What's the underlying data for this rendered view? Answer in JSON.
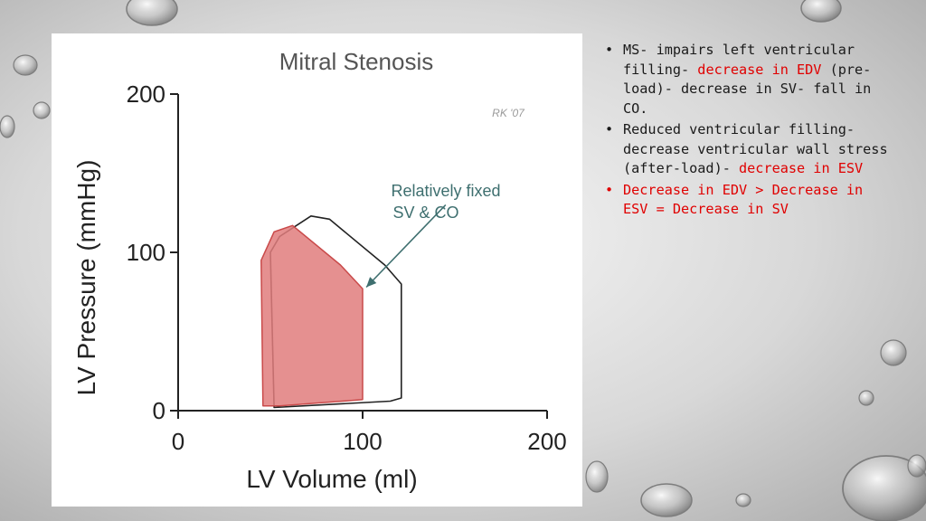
{
  "figure": {
    "title": "Mitral Stenosis",
    "watermark": "RK '07",
    "annotation": [
      "Relatively fixed",
      "SV & CO"
    ],
    "colors": {
      "shaded_loop": "#e07c7c",
      "text_annotation": "#3e6f6f",
      "axis": "#222222"
    }
  },
  "chart_data": {
    "type": "line",
    "title": "Mitral Stenosis",
    "xlabel": "LV Volume (ml)",
    "ylabel": "LV Pressure (mmHg)",
    "xlim": [
      0,
      200
    ],
    "ylim": [
      0,
      200
    ],
    "x_ticks": [
      "0",
      "100",
      "200"
    ],
    "y_ticks": [
      "0",
      "100",
      "200"
    ],
    "grid": false,
    "series": [
      {
        "style": "outline",
        "points": [
          [
            52,
            2
          ],
          [
            50,
            100
          ],
          [
            55,
            110
          ],
          [
            72,
            123
          ],
          [
            82,
            121
          ],
          [
            112,
            92
          ],
          [
            121,
            80
          ],
          [
            121,
            8
          ],
          [
            115,
            6
          ],
          [
            52,
            2
          ]
        ]
      },
      {
        "style": "filled",
        "points": [
          [
            46,
            3
          ],
          [
            45,
            95
          ],
          [
            52,
            113
          ],
          [
            62,
            117
          ],
          [
            88,
            92
          ],
          [
            100,
            77
          ],
          [
            100,
            7
          ],
          [
            55,
            3
          ],
          [
            46,
            3
          ]
        ]
      }
    ],
    "annotation_arrow": {
      "from": [
        145,
        130
      ],
      "to": [
        102,
        78
      ]
    }
  },
  "bullets": [
    {
      "parts": [
        {
          "text": "MS- impairs left ventricular filling- ",
          "red": false
        },
        {
          "text": "decrease in EDV",
          "red": true
        },
        {
          "text": " (pre-load)- decrease in SV- fall in CO.",
          "red": false
        }
      ]
    },
    {
      "parts": [
        {
          "text": "Reduced ventricular filling-decrease ventricular wall stress (after-load)- ",
          "red": false
        },
        {
          "text": "decrease in ESV",
          "red": true
        }
      ]
    },
    {
      "parts": [
        {
          "text": "Decrease in EDV > Decrease in ESV = Decrease in SV",
          "red": true
        }
      ]
    }
  ]
}
